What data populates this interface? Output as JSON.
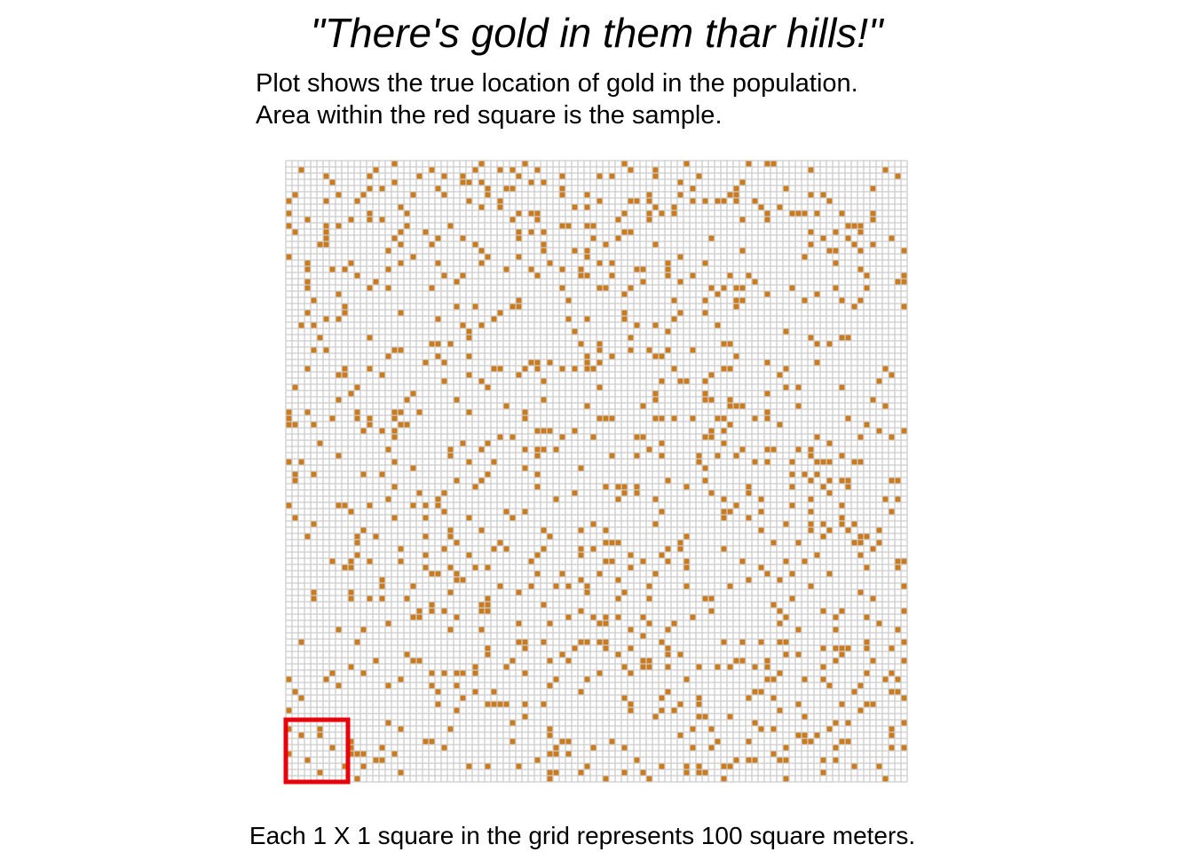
{
  "chart_data": {
    "type": "heatmap",
    "title": "\"There's gold in them thar hills!\"",
    "subtitle_lines": [
      "Plot shows the true location of gold in the population.",
      "Area within the red square is the sample."
    ],
    "caption": "Each 1 X 1 square in the grid represents 100 square meters.",
    "grid": {
      "columns": 100,
      "rows": 100
    },
    "gold_fraction_approx": 0.1,
    "sample_region": {
      "x_start": 0,
      "x_end": 10,
      "y_start": 0,
      "y_end": 10
    },
    "colors": {
      "empty_cell": "#ffffff",
      "grid_lines": "#cccccc",
      "gold_cell": "#cc7a1a",
      "sample_outline": "#e8000b"
    }
  }
}
